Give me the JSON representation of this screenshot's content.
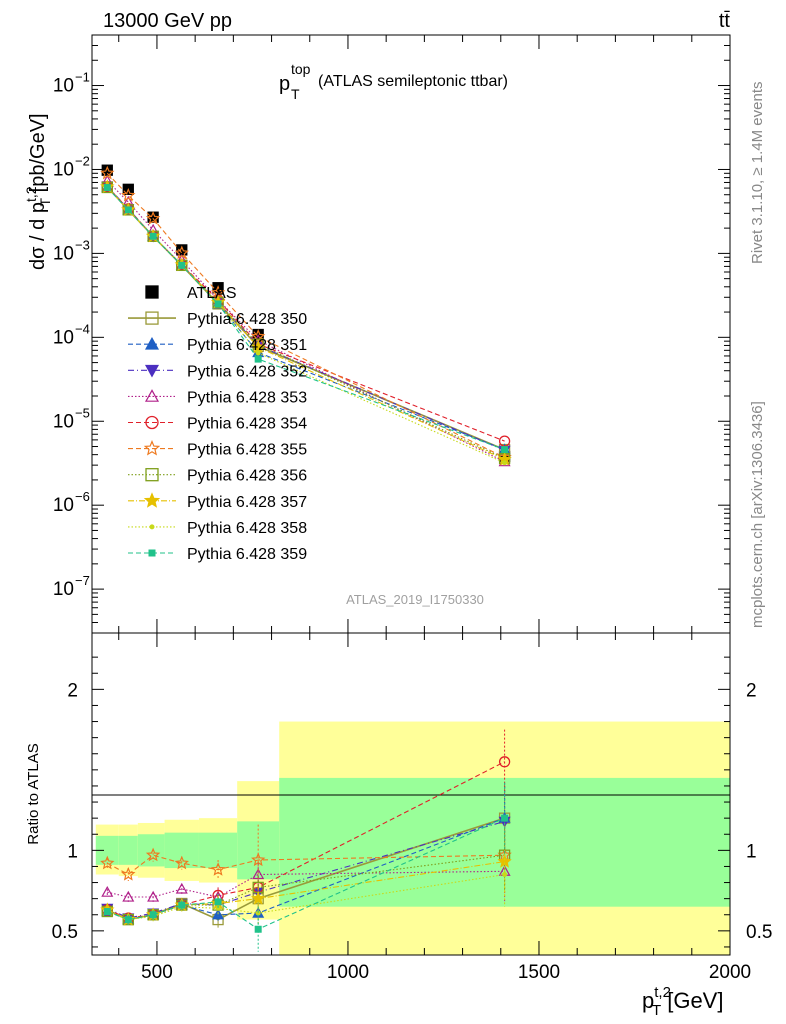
{
  "header": {
    "left": "13000 GeV pp",
    "right": "tt̄"
  },
  "side": {
    "rivet": "Rivet 3.1.10, ≥ 1.4M events",
    "mcplots": "mcplots.cern.ch [arXiv:1306.3436]"
  },
  "chart_data": [
    {
      "type": "line",
      "title_main": "p",
      "title_sup": "top",
      "title_sub": "T",
      "title_rest": " (ATLAS semileptonic ttbar)",
      "watermark": "ATLAS_2019_I1750330",
      "ylabel": "dσ / d p_T^{t,2} [pb/GeV]",
      "yscale": "log",
      "ylim": [
        3e-08,
        0.4
      ],
      "ytick_values": [
        1e-07,
        1e-06,
        1e-05,
        0.0001,
        0.001,
        0.01,
        0.1
      ],
      "yticks": [
        {
          "base": "10",
          "exp": "−7"
        },
        {
          "base": "10",
          "exp": "−6"
        },
        {
          "base": "10",
          "exp": "−5"
        },
        {
          "base": "10",
          "exp": "−4"
        },
        {
          "base": "10",
          "exp": "−3"
        },
        {
          "base": "10",
          "exp": "−2"
        },
        {
          "base": "10",
          "exp": "−1"
        }
      ],
      "xlim": [
        330,
        2000
      ],
      "x": [
        370,
        425,
        490,
        565,
        660,
        765,
        1410
      ],
      "series": [
        {
          "name": "ATLAS",
          "marker": "fsquare",
          "color": "#000000",
          "dash": "none",
          "values": [
            0.0098,
            0.0058,
            0.0027,
            0.0011,
            0.00039,
            0.000108,
            3.8e-06
          ]
        },
        {
          "name": "Pythia 6.428 350",
          "marker": "osquare",
          "color": "#9a9a3a",
          "dash": "solid",
          "values": [
            0.0062,
            0.0033,
            0.0016,
            0.00072,
            0.00025,
            7.8e-05,
            4.6e-06
          ]
        },
        {
          "name": "Pythia 6.428 351",
          "marker": "ftri",
          "color": "#1f5fc4",
          "dash": "5,3",
          "values": [
            0.0061,
            0.0033,
            0.0016,
            0.00072,
            0.00025,
            6.6e-05,
            4.6e-06
          ]
        },
        {
          "name": "Pythia 6.428 352",
          "marker": "ftriinv",
          "color": "#4b2fc0",
          "dash": "6,3,1,3",
          "values": [
            0.0063,
            0.0034,
            0.0016,
            0.00073,
            0.00026,
            8e-05,
            4.5e-06
          ]
        },
        {
          "name": "Pythia 6.428 353",
          "marker": "otri",
          "color": "#b0208a",
          "dash": "1.5,2",
          "values": [
            0.0073,
            0.0041,
            0.0019,
            0.00083,
            0.00028,
            9.2e-05,
            3.3e-06
          ]
        },
        {
          "name": "Pythia 6.428 354",
          "marker": "ocircle",
          "color": "#e0202a",
          "dash": "5,3",
          "values": [
            0.0062,
            0.0034,
            0.0016,
            0.00073,
            0.00028,
            8.3e-05,
            5.8e-06
          ]
        },
        {
          "name": "Pythia 6.428 355",
          "marker": "ostar",
          "color": "#ee7a20",
          "dash": "5,3",
          "values": [
            0.009,
            0.0049,
            0.0026,
            0.00101,
            0.00034,
            0.000102,
            3.7e-06
          ]
        },
        {
          "name": "Pythia 6.428 356",
          "marker": "osquare",
          "color": "#7e9e1a",
          "dash": "1.5,2",
          "values": [
            0.0061,
            0.0033,
            0.0016,
            0.00072,
            0.00026,
            8.3e-05,
            3.6e-06
          ]
        },
        {
          "name": "Pythia 6.428 357",
          "marker": "fstar",
          "color": "#e6c000",
          "dash": "6,2,1,2",
          "values": [
            0.0062,
            0.0033,
            0.0016,
            0.00073,
            0.00026,
            7.6e-05,
            3.5e-06
          ]
        },
        {
          "name": "Pythia 6.428 358",
          "marker": "fdot",
          "color": "#c7d91a",
          "dash": "1.5,2",
          "values": [
            0.0061,
            0.0033,
            0.0016,
            0.00072,
            0.00025,
            6.5e-05,
            3.2e-06
          ]
        },
        {
          "name": "Pythia 6.428 359",
          "marker": "fsmallsq",
          "color": "#20c28a",
          "dash": "5,3",
          "values": [
            0.0061,
            0.0033,
            0.0016,
            0.00072,
            0.00025,
            5.5e-05,
            4.6e-06
          ]
        }
      ]
    },
    {
      "type": "line",
      "ylabel": "Ratio to ATLAS",
      "ylim": [
        0.35,
        2.35
      ],
      "yticks": [
        "0.5",
        "1",
        "2"
      ],
      "ytick_values": [
        0.5,
        1,
        2
      ],
      "xlabel": "p_T^{t,2} [GeV]",
      "xticks": [
        "500",
        "1000",
        "1500",
        "2000"
      ],
      "xtick_values": [
        500,
        1000,
        1500,
        2000
      ],
      "xlim": [
        330,
        2000
      ],
      "bins": [
        {
          "lo": 340,
          "hi": 400,
          "stat_lo": 0.91,
          "stat_hi": 1.09,
          "tot_lo": 0.85,
          "tot_hi": 1.16
        },
        {
          "lo": 400,
          "hi": 450,
          "stat_lo": 0.91,
          "stat_hi": 1.09,
          "tot_lo": 0.84,
          "tot_hi": 1.16
        },
        {
          "lo": 450,
          "hi": 520,
          "stat_lo": 0.9,
          "stat_hi": 1.1,
          "tot_lo": 0.83,
          "tot_hi": 1.17
        },
        {
          "lo": 520,
          "hi": 610,
          "stat_lo": 0.89,
          "stat_hi": 1.11,
          "tot_lo": 0.81,
          "tot_hi": 1.19
        },
        {
          "lo": 610,
          "hi": 710,
          "stat_lo": 0.89,
          "stat_hi": 1.11,
          "tot_lo": 0.8,
          "tot_hi": 1.2
        },
        {
          "lo": 710,
          "hi": 820,
          "stat_lo": 0.82,
          "stat_hi": 1.18,
          "tot_lo": 0.57,
          "tot_hi": 1.43
        },
        {
          "lo": 820,
          "hi": 2000,
          "stat_lo": 0.65,
          "stat_hi": 1.45,
          "tot_lo": 0.35,
          "tot_hi": 1.8
        }
      ],
      "x": [
        370,
        425,
        490,
        565,
        660,
        765,
        1410
      ],
      "series": [
        {
          "name": "Pythia 6.428 350",
          "values": [
            0.63,
            0.57,
            0.6,
            0.67,
            0.57,
            0.7,
            1.2
          ],
          "err": [
            0.02,
            0.03,
            0.03,
            0.03,
            0.05,
            0.07,
            0.22
          ]
        },
        {
          "name": "Pythia 6.428 351",
          "values": [
            0.62,
            0.57,
            0.6,
            0.66,
            0.6,
            0.61,
            1.2
          ],
          "err": [
            0.02,
            0.03,
            0.03,
            0.03,
            0.05,
            0.07,
            0.22
          ]
        },
        {
          "name": "Pythia 6.428 352",
          "values": [
            0.64,
            0.58,
            0.61,
            0.67,
            0.66,
            0.74,
            1.18
          ],
          "err": [
            0.02,
            0.03,
            0.03,
            0.03,
            0.05,
            0.07,
            0.22
          ]
        },
        {
          "name": "Pythia 6.428 353",
          "values": [
            0.74,
            0.71,
            0.71,
            0.76,
            0.71,
            0.85,
            0.87
          ],
          "err": [
            0.02,
            0.03,
            0.03,
            0.03,
            0.05,
            0.07,
            0.2
          ]
        },
        {
          "name": "Pythia 6.428 354",
          "values": [
            0.63,
            0.58,
            0.6,
            0.66,
            0.72,
            0.77,
            1.55
          ],
          "err": [
            0.02,
            0.03,
            0.03,
            0.03,
            0.05,
            0.07,
            0.2
          ]
        },
        {
          "name": "Pythia 6.428 355",
          "values": [
            0.92,
            0.85,
            0.97,
            0.92,
            0.88,
            0.94,
            0.97
          ],
          "err": [
            0.03,
            0.04,
            0.04,
            0.04,
            0.06,
            0.22,
            0.25
          ]
        },
        {
          "name": "Pythia 6.428 356",
          "values": [
            0.62,
            0.57,
            0.6,
            0.66,
            0.66,
            0.77,
            0.97
          ],
          "err": [
            0.02,
            0.03,
            0.03,
            0.03,
            0.05,
            0.07,
            0.22
          ]
        },
        {
          "name": "Pythia 6.428 357",
          "values": [
            0.63,
            0.57,
            0.6,
            0.66,
            0.67,
            0.7,
            0.93
          ],
          "err": [
            0.02,
            0.03,
            0.03,
            0.03,
            0.05,
            0.07,
            0.22
          ]
        },
        {
          "name": "Pythia 6.428 358",
          "values": [
            0.62,
            0.57,
            0.59,
            0.65,
            0.64,
            0.61,
            0.85
          ],
          "err": [
            0.02,
            0.03,
            0.03,
            0.03,
            0.05,
            0.07,
            0.2
          ]
        },
        {
          "name": "Pythia 6.428 359",
          "values": [
            0.62,
            0.57,
            0.6,
            0.66,
            0.68,
            0.51,
            1.2
          ],
          "err": [
            0.02,
            0.03,
            0.03,
            0.03,
            0.05,
            0.14,
            0.22
          ]
        }
      ]
    }
  ]
}
